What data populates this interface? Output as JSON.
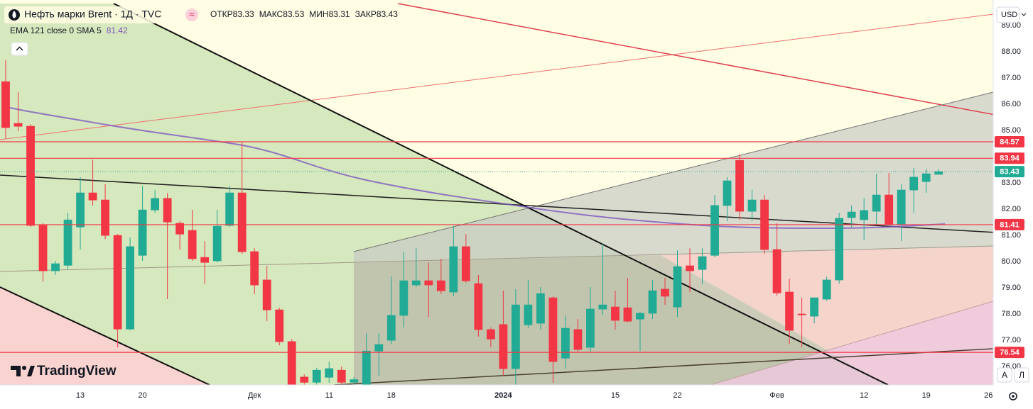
{
  "chart_data": {
    "type": "candlestick",
    "title": "Нефть марки Brent · 1Д · TVC",
    "ohlc_labels": [
      "ОТКР",
      "МАКС",
      "МИН",
      "ЗАКР"
    ],
    "indicator": {
      "label": "EMA 121 close 0 SMA 5",
      "value": 81.42,
      "color": "#7e57c2"
    },
    "currency": "USD",
    "brand": "TradingView",
    "scale_buttons": [
      "A",
      "Л"
    ],
    "categories": [
      null,
      null,
      null,
      null,
      null,
      null,
      "13",
      null,
      null,
      null,
      null,
      "20",
      null,
      null,
      null,
      null,
      null,
      null,
      null,
      null,
      "Дек",
      null,
      null,
      null,
      null,
      null,
      "11",
      null,
      null,
      null,
      null,
      "18",
      null,
      null,
      null,
      null,
      null,
      null,
      null,
      null,
      "2024",
      null,
      null,
      null,
      null,
      null,
      null,
      null,
      null,
      "15",
      null,
      null,
      null,
      null,
      "22",
      null,
      null,
      null,
      null,
      null,
      null,
      null,
      "Фев",
      null,
      null,
      null,
      null,
      null,
      null,
      "12",
      null,
      null,
      null,
      null,
      "19",
      null,
      null,
      null,
      null,
      "26"
    ],
    "open": [
      86.86,
      85.27,
      85.16,
      81.38,
      79.65,
      79.86,
      81.32,
      82.62,
      82.35,
      81.0,
      77.43,
      80.24,
      81.97,
      82.41,
      81.46,
      81.19,
      80.16,
      80.03,
      81.38,
      82.62,
      80.38,
      79.3,
      78.16,
      76.95,
      75.6,
      75.4,
      75.59,
      75.86,
      75.4,
      75.3,
      76.59,
      77.0,
      77.95,
      79.11,
      79.27,
      79.27,
      78.84,
      80.57,
      79.16,
      77.41,
      77.6,
      75.92,
      77.59,
      77.65,
      78.62,
      76.32,
      77.41,
      76.73,
      78.19,
      78.27,
      78.24,
      77.81,
      78.03,
      78.95,
      78.27,
      79.84,
      79.7,
      80.24,
      82.14,
      83.86,
      81.92,
      82.35,
      80.46,
      78.84,
      78.0,
      77.92,
      78.57,
      79.3,
      81.68,
      81.6,
      81.92,
      82.54,
      81.43,
      82.73,
      83.05,
      83.33,
      null,
      null,
      null,
      null
    ],
    "high": [
      87.68,
      86.46,
      85.24,
      81.46,
      80.03,
      81.86,
      83.22,
      83.89,
      82.95,
      81.05,
      80.92,
      82.89,
      82.73,
      82.62,
      81.54,
      81.97,
      80.78,
      81.97,
      82.89,
      84.57,
      80.51,
      79.84,
      78.24,
      77.05,
      75.7,
      75.95,
      76.19,
      76.0,
      75.6,
      77.27,
      77.27,
      79.43,
      80.38,
      80.51,
      79.97,
      80.11,
      81.35,
      81.05,
      79.49,
      77.49,
      78.89,
      78.95,
      79.3,
      79.03,
      78.68,
      77.95,
      77.81,
      79.03,
      80.7,
      78.89,
      79.38,
      78.08,
      79.3,
      79.38,
      80.43,
      80.51,
      80.51,
      82.54,
      83.22,
      84.08,
      82.73,
      82.54,
      81.46,
      79.35,
      78.62,
      78.62,
      79.43,
      81.86,
      82.14,
      82.41,
      83.35,
      83.38,
      82.95,
      83.57,
      83.54,
      83.53,
      null,
      null,
      null,
      null
    ],
    "low": [
      84.7,
      84.97,
      81.32,
      79.24,
      79.49,
      79.7,
      80.46,
      82.14,
      80.86,
      76.73,
      77.38,
      80.03,
      81.86,
      78.57,
      80.46,
      80.03,
      79.16,
      79.97,
      81.32,
      80.3,
      78.76,
      77.73,
      76.81,
      75.24,
      75.24,
      75.24,
      75.38,
      75.24,
      75.24,
      75.24,
      75.65,
      76.86,
      77.49,
      79.03,
      77.89,
      78.76,
      78.68,
      79.2,
      77.14,
      76.73,
      75.65,
      75.24,
      77.46,
      77.4,
      75.38,
      75.92,
      76.54,
      76.54,
      77.97,
      77.41,
      77.68,
      76.59,
      77.81,
      78.35,
      77.89,
      78.84,
      79.16,
      80.16,
      81.54,
      81.59,
      81.54,
      80.3,
      78.7,
      76.86,
      76.73,
      77.65,
      78.5,
      79.16,
      81.32,
      80.84,
      81.4,
      81.4,
      80.78,
      81.86,
      82.62,
      83.31,
      null,
      null,
      null,
      null
    ],
    "close": [
      85.11,
      85.16,
      81.38,
      79.65,
      79.92,
      81.59,
      82.62,
      82.35,
      81.0,
      77.43,
      80.57,
      81.97,
      82.41,
      81.51,
      81.05,
      80.11,
      79.97,
      81.35,
      82.62,
      80.38,
      79.11,
      78.16,
      76.95,
      75.3,
      75.4,
      75.86,
      75.92,
      75.4,
      75.5,
      76.59,
      76.84,
      77.95,
      79.27,
      79.27,
      79.11,
      78.89,
      80.57,
      79.27,
      77.41,
      77.05,
      75.92,
      78.35,
      78.35,
      78.78,
      76.19,
      77.46,
      76.65,
      78.19,
      78.35,
      77.76,
      77.73,
      78.03,
      78.89,
      78.68,
      79.81,
      79.65,
      80.19,
      82.14,
      83.08,
      81.92,
      82.35,
      80.46,
      78.81,
      77.38,
      77.97,
      78.62,
      79.3,
      81.65,
      81.89,
      81.95,
      82.54,
      81.43,
      82.73,
      83.22,
      83.35,
      83.43,
      null,
      null,
      null,
      null
    ],
    "up_color": "#22ab94",
    "down_color": "#f23645",
    "ylim": [
      75.3,
      89.84
    ],
    "yticks": [
      {
        "value": 76,
        "label": "76.00"
      },
      {
        "value": 77,
        "label": "77.00"
      },
      {
        "value": 78,
        "label": "78.00"
      },
      {
        "value": 79,
        "label": "79.00"
      },
      {
        "value": 80,
        "label": "80.00"
      },
      {
        "value": 81,
        "label": "81.00"
      },
      {
        "value": 82,
        "label": "82.00"
      },
      {
        "value": 83,
        "label": "83.00"
      },
      {
        "value": 84,
        "label": "84.00"
      },
      {
        "value": 85,
        "label": "85.00"
      },
      {
        "value": 86,
        "label": "86.00"
      },
      {
        "value": 87,
        "label": "87.00"
      },
      {
        "value": 88,
        "label": "88.00"
      },
      {
        "value": 89,
        "label": "89.00"
      }
    ],
    "grid": false,
    "price_lines": [
      {
        "value": 84.57,
        "color": "#f23645"
      },
      {
        "value": 83.94,
        "color": "#f23645"
      },
      {
        "value": 81.41,
        "color": "#f23645"
      },
      {
        "value": 76.54,
        "color": "#f23645"
      }
    ]
  }
}
